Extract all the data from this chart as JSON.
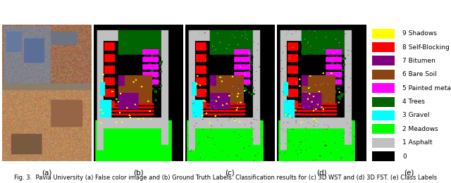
{
  "figure_title": "Fig. 3.  Pavia University (a) False color image and (b) Ground Truth Labels. Classification results for (c) 3D WST and (d) 3D FST. (e) Class Labels",
  "subfig_labels": [
    "(a)",
    "(b)",
    "(c)",
    "(d)",
    "(e)"
  ],
  "legend_labels": [
    "9 Shadows",
    "8 Self-Blocking Bricks",
    "7 Bitumen",
    "6 Bare Soil",
    "5 Painted metal sheets",
    "4 Trees",
    "3 Gravel",
    "2 Meadows",
    "1 Asphalt",
    "0"
  ],
  "legend_colors": [
    "#ffff00",
    "#ff0000",
    "#800080",
    "#8B4513",
    "#ff00ff",
    "#006400",
    "#00ffff",
    "#00ff00",
    "#c0c0c0",
    "#000000"
  ],
  "background_color": "#ffffff",
  "fig_width": 6.4,
  "fig_height": 2.6,
  "caption_fontsize": 6.0,
  "legend_fontsize": 6.5,
  "subfig_label_fontsize": 7.5,
  "width_ratios": [
    1,
    1,
    1,
    1,
    0.9
  ]
}
